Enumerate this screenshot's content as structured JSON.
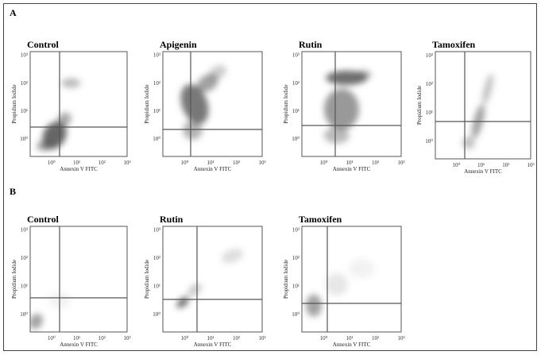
{
  "panels": [
    {
      "label": "A",
      "plots": [
        {
          "title": "Control",
          "x_label": "Annexin V FITC",
          "y_label": "Propidium Iodide",
          "x_ticks": [
            "10⁰",
            "10¹",
            "10²",
            "10³"
          ],
          "y_ticks": [
            "10⁰",
            "10¹",
            "10²",
            "10³"
          ]
        },
        {
          "title": "Apigenin",
          "x_label": "Annexin V FITC",
          "y_label": "Propidium Iodide",
          "x_ticks": [
            "10⁰",
            "10¹",
            "10²",
            "10³"
          ],
          "y_ticks": [
            "10⁰",
            "10¹",
            "10²",
            "10³"
          ]
        },
        {
          "title": "Rutin",
          "x_label": "Annexin V FITC",
          "y_label": "Propidium Iodide",
          "x_ticks": [
            "10⁰",
            "10¹",
            "10²",
            "10³"
          ],
          "y_ticks": [
            "10⁰",
            "10¹",
            "10²",
            "10³"
          ]
        },
        {
          "title": "Tamoxifen",
          "x_label": "Annexin V FITC",
          "y_label": "Propidium Iodide",
          "x_ticks": [
            "10⁰",
            "10¹",
            "10²",
            "10³"
          ],
          "y_ticks": [
            "10⁰",
            "10¹",
            "10²",
            "10³"
          ]
        }
      ]
    },
    {
      "label": "B",
      "plots": [
        {
          "title": "Control",
          "x_label": "Annexin V FITC",
          "y_label": "Propidium Iodide",
          "x_ticks": [
            "10⁰",
            "10¹",
            "10²",
            "10³"
          ],
          "y_ticks": [
            "10⁰",
            "10¹",
            "10²",
            "10³"
          ]
        },
        {
          "title": "Rutin",
          "x_label": "Annexin V FITC",
          "y_label": "Propidium Iodide",
          "x_ticks": [
            "10⁰",
            "10¹",
            "10²",
            "10³"
          ],
          "y_ticks": [
            "10⁰",
            "10¹",
            "10²",
            "10³"
          ]
        },
        {
          "title": "Tamoxifen",
          "x_label": "Annexin V FITC",
          "y_label": "Propidium Iodide",
          "x_ticks": [
            "10⁰",
            "10¹",
            "10²",
            "10³"
          ],
          "y_ticks": [
            "10⁰",
            "10¹",
            "10²",
            "10³"
          ]
        }
      ]
    }
  ]
}
